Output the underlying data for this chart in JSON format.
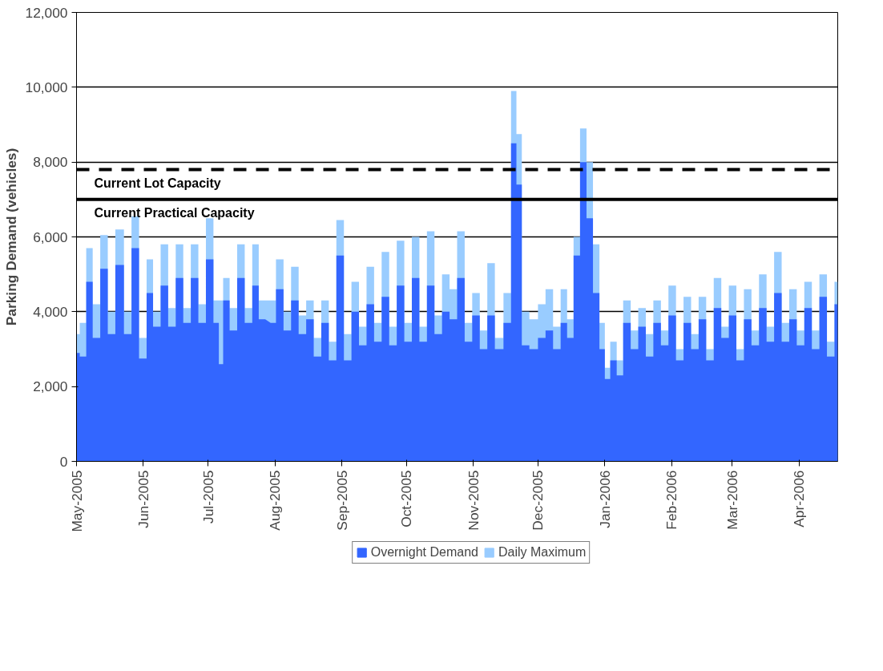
{
  "chart_data": {
    "type": "area",
    "ylabel": "Parking Demand (vehicles)",
    "x": [
      "2005-05-01",
      "2005-05-04",
      "2005-05-07",
      "2005-05-10",
      "2005-05-14",
      "2005-05-17",
      "2005-05-21",
      "2005-05-25",
      "2005-05-28",
      "2005-06-01",
      "2005-06-04",
      "2005-06-07",
      "2005-06-11",
      "2005-06-14",
      "2005-06-18",
      "2005-06-21",
      "2005-06-25",
      "2005-06-28",
      "2005-07-02",
      "2005-07-05",
      "2005-07-07",
      "2005-07-09",
      "2005-07-13",
      "2005-07-16",
      "2005-07-20",
      "2005-07-23",
      "2005-07-26",
      "2005-07-29",
      "2005-07-31",
      "2005-08-03",
      "2005-08-07",
      "2005-08-10",
      "2005-08-14",
      "2005-08-17",
      "2005-08-21",
      "2005-08-24",
      "2005-08-28",
      "2005-08-31",
      "2005-09-04",
      "2005-09-07",
      "2005-09-11",
      "2005-09-14",
      "2005-09-18",
      "2005-09-21",
      "2005-09-25",
      "2005-09-28",
      "2005-10-02",
      "2005-10-05",
      "2005-10-09",
      "2005-10-12",
      "2005-10-16",
      "2005-10-19",
      "2005-10-23",
      "2005-10-26",
      "2005-10-30",
      "2005-11-02",
      "2005-11-06",
      "2005-11-09",
      "2005-11-13",
      "2005-11-17",
      "2005-11-20",
      "2005-11-22",
      "2005-11-25",
      "2005-11-29",
      "2005-12-03",
      "2005-12-06",
      "2005-12-10",
      "2005-12-13",
      "2005-12-16",
      "2005-12-19",
      "2005-12-22",
      "2005-12-25",
      "2005-12-28",
      "2005-12-31",
      "2006-01-02",
      "2006-01-05",
      "2006-01-08",
      "2006-01-11",
      "2006-01-15",
      "2006-01-18",
      "2006-01-22",
      "2006-01-25",
      "2006-01-29",
      "2006-02-01",
      "2006-02-05",
      "2006-02-08",
      "2006-02-12",
      "2006-02-15",
      "2006-02-19",
      "2006-02-22",
      "2006-02-26",
      "2006-03-01",
      "2006-03-05",
      "2006-03-08",
      "2006-03-12",
      "2006-03-15",
      "2006-03-19",
      "2006-03-22",
      "2006-03-26",
      "2006-03-29",
      "2006-04-02",
      "2006-04-05",
      "2006-04-09",
      "2006-04-12",
      "2006-04-16",
      "2006-04-19"
    ],
    "series": [
      {
        "name": "Daily Maximum",
        "color": "#99ccff",
        "values": [
          3400,
          3700,
          5700,
          4200,
          6050,
          4000,
          6200,
          4000,
          6550,
          3300,
          5400,
          4000,
          5800,
          4100,
          5800,
          4100,
          5800,
          4200,
          6500,
          4300,
          4300,
          4900,
          4100,
          5800,
          4100,
          5800,
          4300,
          null,
          4300,
          5400,
          4000,
          5200,
          3900,
          4300,
          3300,
          4300,
          3200,
          6450,
          3400,
          4800,
          3600,
          5200,
          3700,
          5600,
          3600,
          5900,
          3700,
          6000,
          3600,
          6150,
          3900,
          5000,
          4600,
          6150,
          3700,
          4500,
          3500,
          5300,
          3300,
          4500,
          9900,
          8750,
          4000,
          3800,
          4200,
          4600,
          3600,
          4600,
          3800,
          6000,
          8900,
          8000,
          5800,
          3700,
          2500,
          3200,
          2700,
          4300,
          3500,
          4100,
          3400,
          4300,
          3500,
          4700,
          3000,
          4400,
          3400,
          4400,
          3000,
          4900,
          3600,
          4700,
          3000,
          4600,
          3500,
          5000,
          3600,
          5600,
          3700,
          4600,
          3500,
          4800,
          3500,
          5000,
          3200,
          4800
        ]
      },
      {
        "name": "Overnight Demand",
        "color": "#3366ff",
        "values": [
          2900,
          2800,
          4800,
          3300,
          5150,
          3400,
          5250,
          3400,
          5700,
          2750,
          4500,
          3600,
          4700,
          3600,
          4900,
          3700,
          4900,
          3700,
          5400,
          3700,
          2600,
          4300,
          3500,
          4900,
          3700,
          4700,
          3800,
          null,
          3700,
          4600,
          3500,
          4300,
          3400,
          3800,
          2800,
          3700,
          2700,
          5500,
          2700,
          4000,
          3100,
          4200,
          3200,
          4400,
          3100,
          4700,
          3200,
          4900,
          3200,
          4700,
          3400,
          4000,
          3800,
          4900,
          3200,
          3900,
          3000,
          3900,
          3000,
          3700,
          8500,
          7400,
          3100,
          3000,
          3300,
          3500,
          3000,
          3700,
          3300,
          5500,
          8000,
          6500,
          4500,
          3000,
          2200,
          2700,
          2300,
          3700,
          3000,
          3600,
          2800,
          3700,
          3100,
          3900,
          2700,
          3700,
          3000,
          3800,
          2700,
          4100,
          3300,
          3900,
          2700,
          3800,
          3100,
          4100,
          3200,
          4500,
          3200,
          3800,
          3100,
          4100,
          3000,
          4400,
          2800,
          4200
        ]
      }
    ],
    "xlim": [
      "2005-05-01",
      "2006-04-19"
    ],
    "xticks": [
      {
        "value": "2005-05-01",
        "label": "May-2005"
      },
      {
        "value": "2005-06-01",
        "label": "Jun-2005"
      },
      {
        "value": "2005-07-01",
        "label": "Jul-2005"
      },
      {
        "value": "2005-08-01",
        "label": "Aug-2005"
      },
      {
        "value": "2005-09-01",
        "label": "Sep-2005"
      },
      {
        "value": "2005-10-01",
        "label": "Oct-2005"
      },
      {
        "value": "2005-11-01",
        "label": "Nov-2005"
      },
      {
        "value": "2005-12-01",
        "label": "Dec-2005"
      },
      {
        "value": "2006-01-01",
        "label": "Jan-2006"
      },
      {
        "value": "2006-02-01",
        "label": "Feb-2006"
      },
      {
        "value": "2006-03-01",
        "label": "Mar-2006"
      },
      {
        "value": "2006-04-01",
        "label": "Apr-2006"
      }
    ],
    "ylim": [
      0,
      12000
    ],
    "yticks": [
      0,
      {
        "value": 2000,
        "label": "2,000"
      },
      {
        "value": 4000,
        "label": "4,000"
      },
      {
        "value": 6000,
        "label": "6,000"
      },
      {
        "value": 8000,
        "label": "8,000"
      },
      {
        "value": 10000,
        "label": "10,000"
      },
      {
        "value": 12000,
        "label": "12,000"
      }
    ],
    "ref_lines": [
      {
        "axis": "y",
        "value": 7800,
        "label": "Current Lot Capacity",
        "color": "#000000",
        "line_style": "dashed"
      },
      {
        "axis": "y",
        "value": 7000,
        "label": "Current Practical Capacity",
        "color": "#000000",
        "line_style": "solid"
      }
    ],
    "grid": "y",
    "legend": "bottom"
  }
}
